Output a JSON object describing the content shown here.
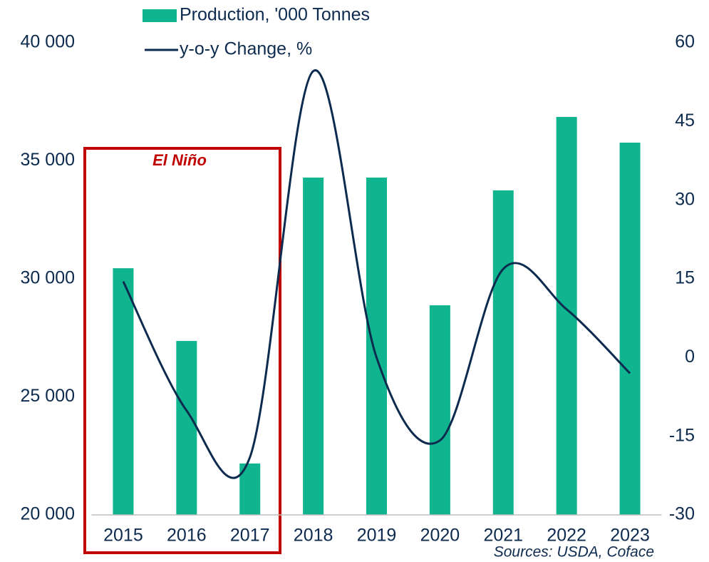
{
  "chart_data": {
    "type": "bar",
    "categories": [
      "2015",
      "2016",
      "2017",
      "2018",
      "2019",
      "2020",
      "2021",
      "2022",
      "2023"
    ],
    "series": [
      {
        "name": "Production, '000 Tonnes",
        "color": "#10b48f",
        "values": [
          30450,
          27370,
          22180,
          34290,
          34290,
          28880,
          33750,
          36860,
          35770
        ]
      },
      {
        "name": "y-o-y Change, %",
        "color": "#0d2b4e",
        "type": "line",
        "axis": "y2",
        "values": [
          14.5,
          -10.1,
          -19.0,
          54.6,
          0.0,
          -15.8,
          16.9,
          9.2,
          -3.0
        ]
      }
    ],
    "ylim": [
      20000,
      40000
    ],
    "yticks": [
      {
        "value": 20000,
        "label": "20 000"
      },
      {
        "value": 25000,
        "label": "25 000"
      },
      {
        "value": 30000,
        "label": "30 000"
      },
      {
        "value": 35000,
        "label": "35 000"
      },
      {
        "value": 40000,
        "label": "40 000"
      }
    ],
    "y2lim": [
      -30,
      60
    ],
    "y2ticks": [
      -30,
      -15,
      0,
      15,
      30,
      45,
      60
    ],
    "annotations": {
      "box_label": "El Niño",
      "source": "Sources: USDA, Coface"
    }
  }
}
